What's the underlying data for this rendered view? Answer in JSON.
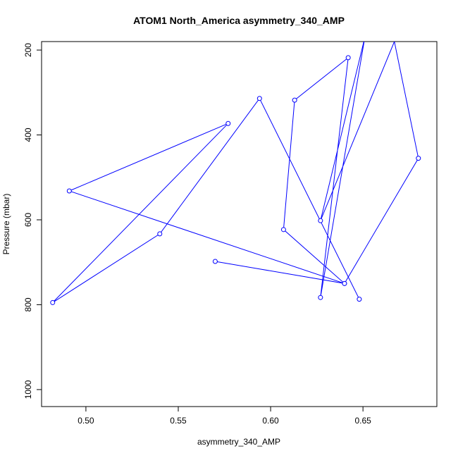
{
  "chart_data": {
    "type": "line",
    "title": "ATOM1 North_America asymmetry_340_AMP",
    "xlabel": "asymmetry_340_AMP",
    "ylabel": "Pressure (mbar)",
    "xlim": [
      0.476,
      0.69
    ],
    "ylim": [
      1040,
      180
    ],
    "y_inverted": true,
    "grid": false,
    "xticks": [
      "0.50",
      "0.55",
      "0.60",
      "0.65"
    ],
    "xtick_values": [
      0.5,
      0.55,
      0.6,
      0.65
    ],
    "yticks": [
      "200",
      "400",
      "600",
      "800",
      "1000"
    ],
    "ytick_values": [
      200,
      400,
      600,
      800,
      1000
    ],
    "series": [
      {
        "color": "#0000ff",
        "marker": "open-circle",
        "points": [
          {
            "x": 0.57,
            "y": 698
          },
          {
            "x": 0.64,
            "y": 750
          },
          {
            "x": 0.607,
            "y": 623
          },
          {
            "x": 0.613,
            "y": 318
          },
          {
            "x": 0.642,
            "y": 218
          },
          {
            "x": 0.627,
            "y": 783
          },
          {
            "x": 0.651,
            "y": 170,
            "marker": false
          },
          {
            "x": 0.627,
            "y": 602
          },
          {
            "x": 0.667,
            "y": 180,
            "marker": false
          },
          {
            "x": 0.68,
            "y": 455
          },
          {
            "x": 0.64,
            "y": 750
          },
          {
            "x": 0.491,
            "y": 532
          },
          {
            "x": 0.577,
            "y": 373
          },
          {
            "x": 0.482,
            "y": 795
          },
          {
            "x": 0.54,
            "y": 633
          },
          {
            "x": 0.594,
            "y": 314
          },
          {
            "x": 0.648,
            "y": 787
          }
        ]
      }
    ]
  }
}
